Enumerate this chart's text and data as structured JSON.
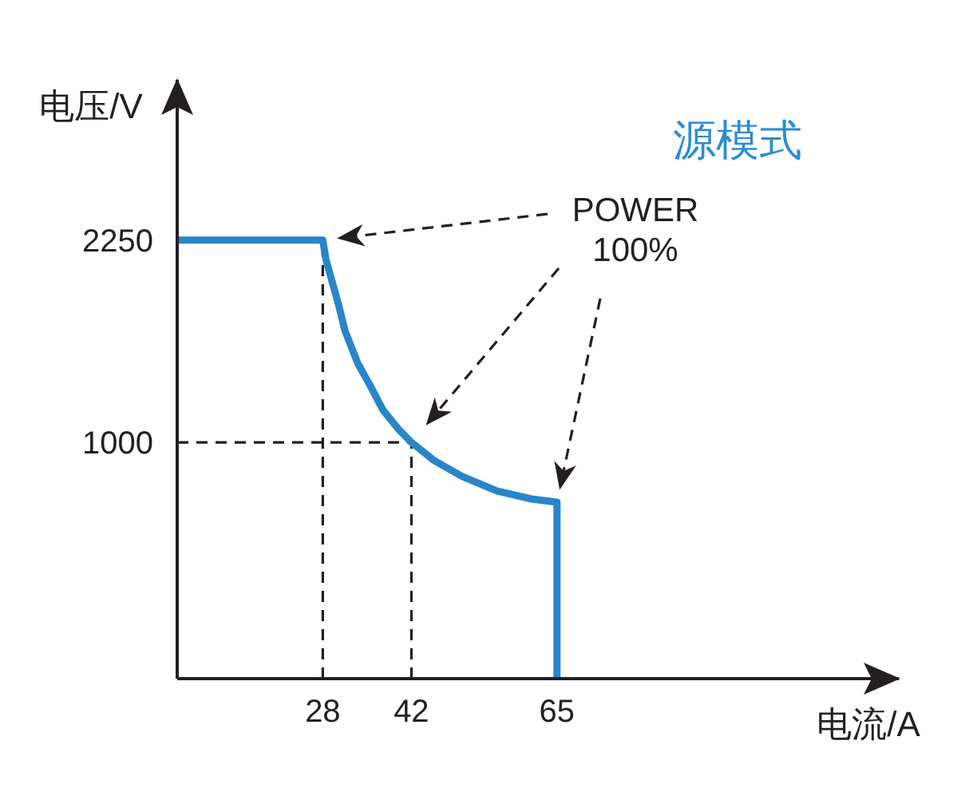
{
  "chart_data": {
    "type": "line",
    "title": "源模式",
    "xlabel": "电流/A",
    "ylabel": "电压/V",
    "annotations": [
      "POWER\n100%"
    ],
    "x": [
      5,
      28,
      28.5,
      29.5,
      30.5,
      31.5,
      33.5,
      35.5,
      37.5,
      40,
      42,
      45.5,
      50,
      55.5,
      61,
      65,
      65
    ],
    "values": [
      2250,
      2250,
      2130,
      1990,
      1850,
      1690,
      1490,
      1350,
      1200,
      1080,
      1000,
      890,
      790,
      700,
      650,
      630,
      -460
    ],
    "color": "#2886c8",
    "marker": "none",
    "line_style": "solid",
    "xlim": [
      5,
      119
    ],
    "xticks": [
      28,
      42,
      65
    ],
    "ylim": [
      -460,
      3240
    ],
    "yticks": [
      1000,
      2250
    ],
    "ref_lines": [
      {
        "axis": "x",
        "value": 28,
        "color": "#231f20",
        "line_style": "dashed"
      },
      {
        "axis": "x",
        "value": 42,
        "color": "#231f20",
        "line_style": "dashed"
      },
      {
        "axis": "y",
        "value": 1000,
        "color": "#231f20",
        "line_style": "dashed"
      }
    ]
  }
}
